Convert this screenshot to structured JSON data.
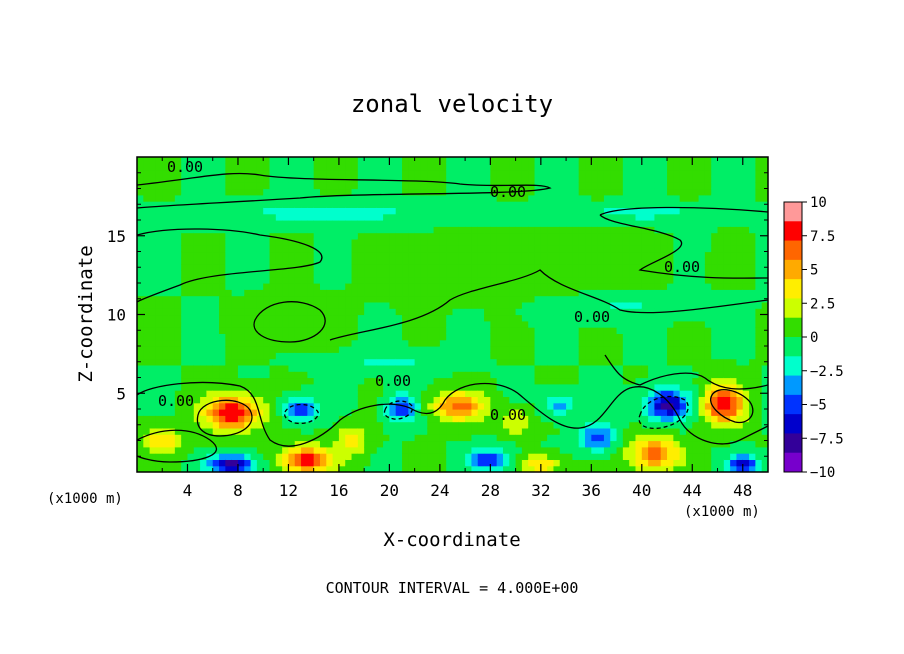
{
  "chart_data": {
    "type": "heatmap",
    "title": "zonal velocity",
    "xlabel": "X-coordinate",
    "ylabel": "Z-coordinate",
    "x_unit_left": "(x1000 m)",
    "x_unit_right": "(x1000 m)",
    "footer": "CONTOUR INTERVAL = 4.000E+00",
    "xlim": [
      0,
      50
    ],
    "ylim": [
      0,
      20
    ],
    "x_ticks": [
      4,
      8,
      12,
      16,
      20,
      24,
      28,
      32,
      36,
      40,
      44,
      48
    ],
    "y_ticks": [
      5,
      10,
      15
    ],
    "contour_label": "0.00",
    "contour_interval": 4.0,
    "colorbar": {
      "min": -10,
      "max": 10,
      "tick_values": [
        10,
        7.5,
        5,
        2.5,
        0,
        -2.5,
        -5,
        -7.5,
        -10
      ],
      "tick_labels": [
        "10",
        "7.5",
        "5",
        "2.5",
        "0",
        "−2.5",
        "−5",
        "−7.5",
        "−10"
      ],
      "colors": [
        "#ff9999",
        "#ff0000",
        "#ff6600",
        "#ffaa00",
        "#ffee00",
        "#ccff00",
        "#33dd00",
        "#00ee66",
        "#00ffcc",
        "#0099ff",
        "#0033ff",
        "#0000cc",
        "#330099",
        "#7700cc"
      ]
    },
    "blobs": [
      {
        "x": 7.5,
        "z": 3.8,
        "v": 8.5,
        "sx": 2.2,
        "sz": 1.1
      },
      {
        "x": 13.5,
        "z": 0.8,
        "v": 8.5,
        "sx": 2.0,
        "sz": 0.8
      },
      {
        "x": 2.0,
        "z": 2.0,
        "v": 4.5,
        "sx": 1.5,
        "sz": 0.8
      },
      {
        "x": 25.5,
        "z": 4.2,
        "v": 6.5,
        "sx": 2.0,
        "sz": 0.9
      },
      {
        "x": 41.0,
        "z": 1.2,
        "v": 6.5,
        "sx": 2.0,
        "sz": 1.0
      },
      {
        "x": 46.5,
        "z": 4.3,
        "v": 8.5,
        "sx": 1.6,
        "sz": 1.2
      },
      {
        "x": 32.0,
        "z": 0.5,
        "v": 4.0,
        "sx": 1.5,
        "sz": 0.6
      },
      {
        "x": 7.5,
        "z": 0.5,
        "v": -8.0,
        "sx": 1.8,
        "sz": 0.6
      },
      {
        "x": 13.0,
        "z": 4.0,
        "v": -5.5,
        "sx": 1.3,
        "sz": 0.7
      },
      {
        "x": 21.0,
        "z": 4.1,
        "v": -5.5,
        "sx": 1.2,
        "sz": 0.8
      },
      {
        "x": 28.0,
        "z": 0.8,
        "v": -6.0,
        "sx": 1.5,
        "sz": 0.7
      },
      {
        "x": 36.5,
        "z": 2.2,
        "v": -5.5,
        "sx": 1.3,
        "sz": 0.8
      },
      {
        "x": 42.0,
        "z": 4.3,
        "v": -7.5,
        "sx": 1.7,
        "sz": 1.0
      },
      {
        "x": 48.0,
        "z": 0.5,
        "v": -7.0,
        "sx": 1.2,
        "sz": 0.6
      },
      {
        "x": 33.5,
        "z": 4.3,
        "v": -3.5,
        "sx": 1.3,
        "sz": 0.7
      },
      {
        "x": 17.0,
        "z": 2.0,
        "v": 3.5,
        "sx": 1.2,
        "sz": 0.9
      },
      {
        "x": 30.0,
        "z": 3.2,
        "v": 3.0,
        "sx": 1.2,
        "sz": 0.8
      },
      {
        "x": 15.0,
        "z": 16.5,
        "v": -2.0,
        "sx": 10.0,
        "sz": 0.7
      },
      {
        "x": 40.0,
        "z": 16.5,
        "v": -1.8,
        "sx": 8.0,
        "sz": 0.6
      },
      {
        "x": 38.0,
        "z": 10.5,
        "v": -1.6,
        "sx": 6.0,
        "sz": 0.8
      },
      {
        "x": 20.0,
        "z": 7.0,
        "v": -1.8,
        "sx": 4.0,
        "sz": 0.7
      },
      {
        "x": 12.0,
        "z": 9.5,
        "v": 1.2,
        "sx": 3.0,
        "sz": 1.2
      },
      {
        "x": 30.0,
        "z": 13.0,
        "v": 1.0,
        "sx": 8.0,
        "sz": 2.0
      }
    ]
  }
}
